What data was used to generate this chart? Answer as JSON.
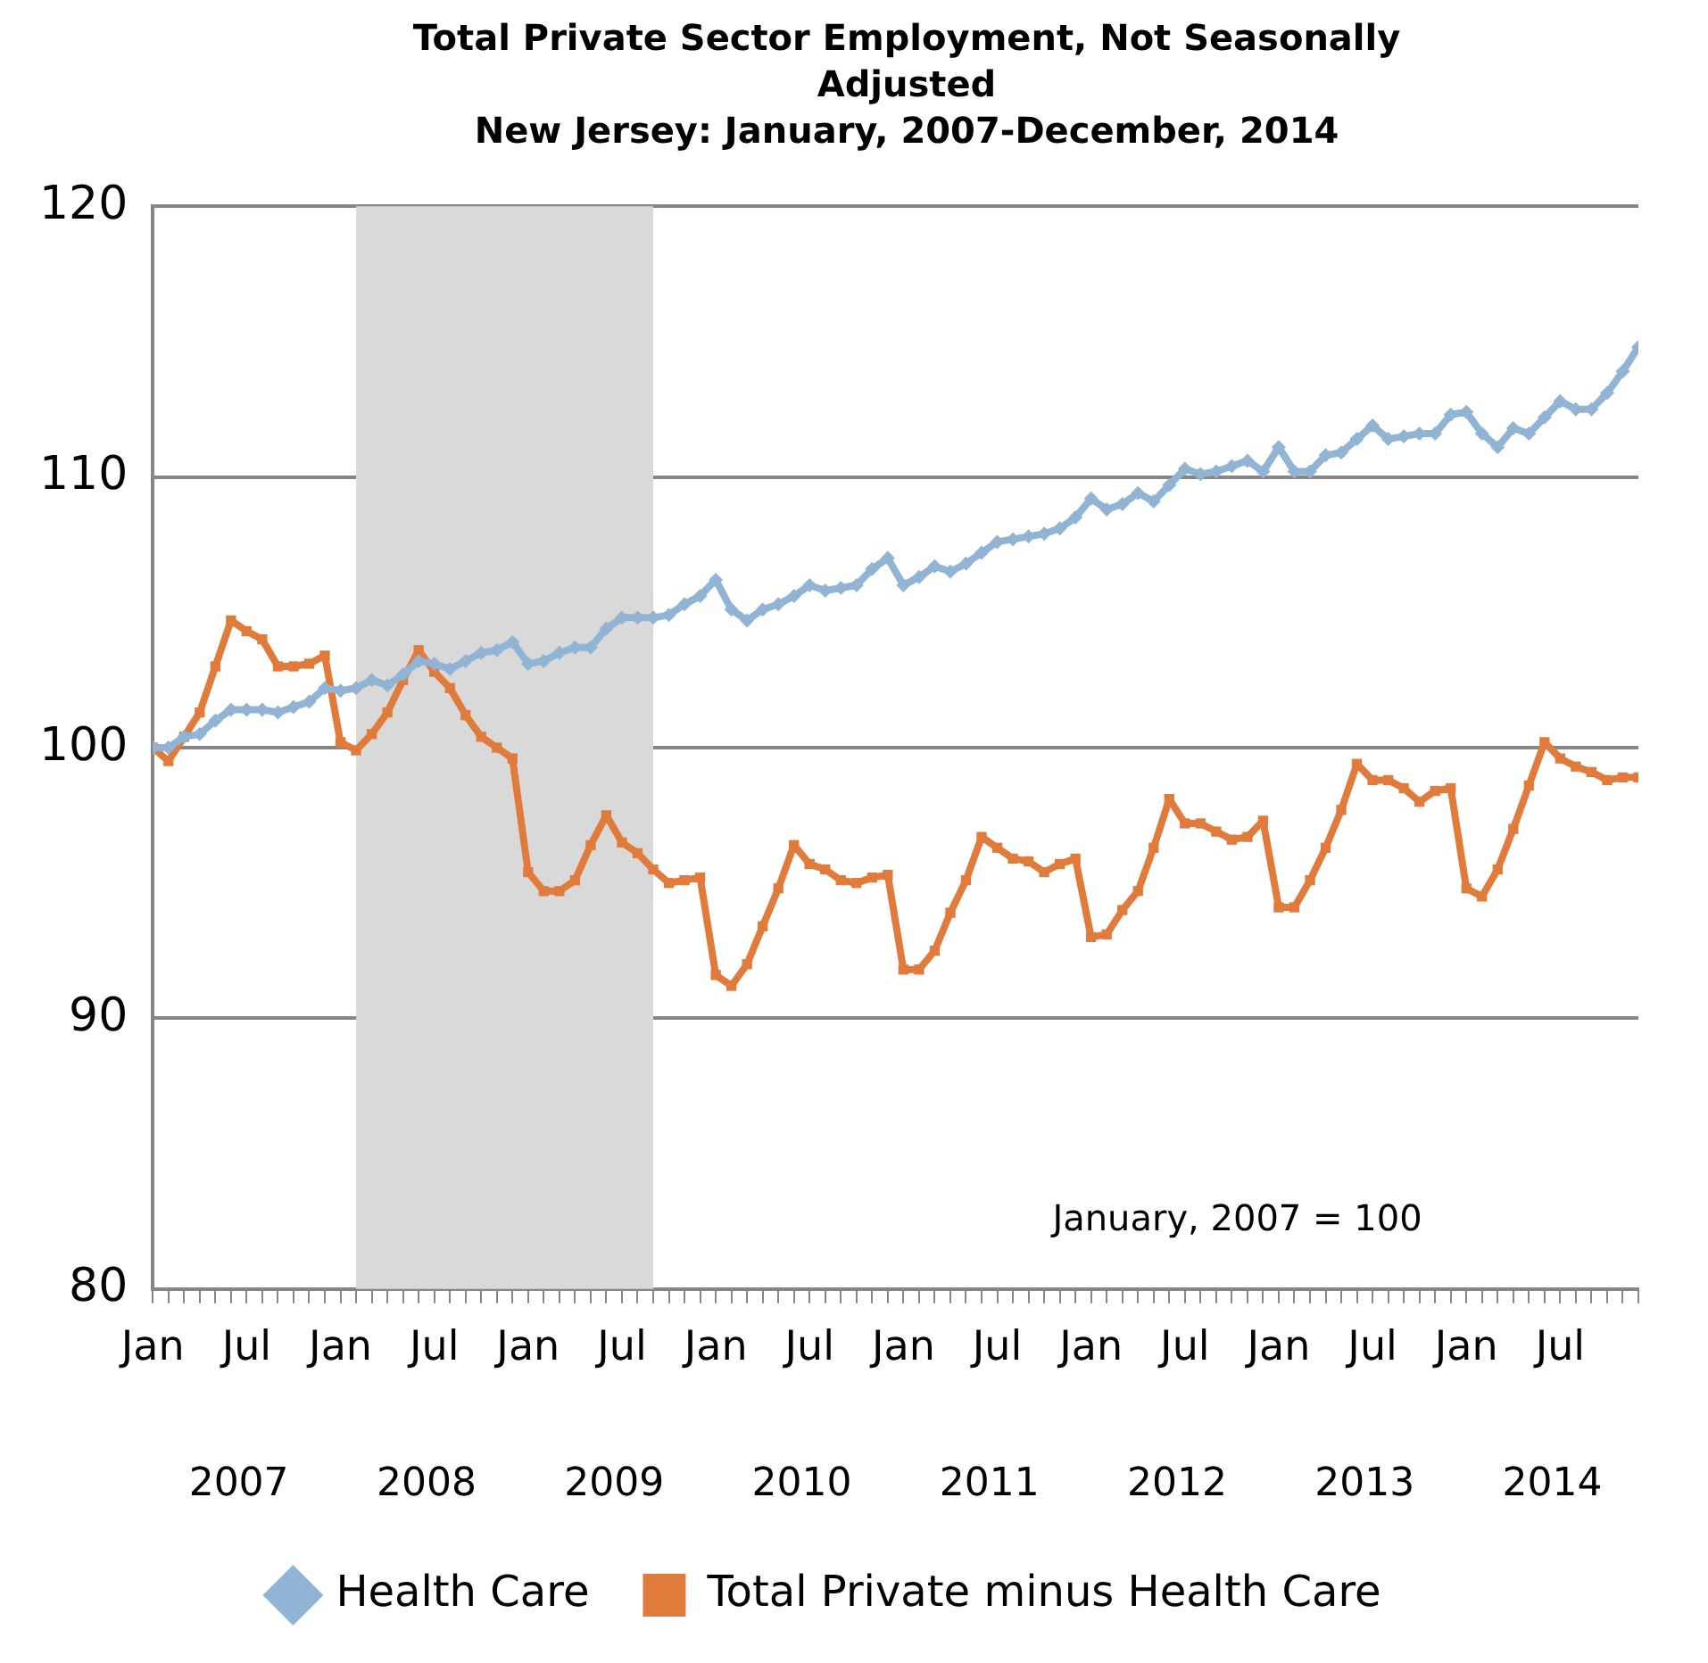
{
  "chart_data": {
    "type": "line",
    "title": "Total Private Sector Employment, Not Seasonally Adjusted",
    "subtitle": "New Jersey: January, 2007-December, 2014",
    "x": [
      "2007-01",
      "2007-02",
      "2007-03",
      "2007-04",
      "2007-05",
      "2007-06",
      "2007-07",
      "2007-08",
      "2007-09",
      "2007-10",
      "2007-11",
      "2007-12",
      "2008-01",
      "2008-02",
      "2008-03",
      "2008-04",
      "2008-05",
      "2008-06",
      "2008-07",
      "2008-08",
      "2008-09",
      "2008-10",
      "2008-11",
      "2008-12",
      "2009-01",
      "2009-02",
      "2009-03",
      "2009-04",
      "2009-05",
      "2009-06",
      "2009-07",
      "2009-08",
      "2009-09",
      "2009-10",
      "2009-11",
      "2009-12",
      "2010-01",
      "2010-02",
      "2010-03",
      "2010-04",
      "2010-05",
      "2010-06",
      "2010-07",
      "2010-08",
      "2010-09",
      "2010-10",
      "2010-11",
      "2010-12",
      "2011-01",
      "2011-02",
      "2011-03",
      "2011-04",
      "2011-05",
      "2011-06",
      "2011-07",
      "2011-08",
      "2011-09",
      "2011-10",
      "2011-11",
      "2011-12",
      "2012-01",
      "2012-02",
      "2012-03",
      "2012-04",
      "2012-05",
      "2012-06",
      "2012-07",
      "2012-08",
      "2012-09",
      "2012-10",
      "2012-11",
      "2012-12",
      "2013-01",
      "2013-02",
      "2013-03",
      "2013-04",
      "2013-05",
      "2013-06",
      "2013-07",
      "2013-08",
      "2013-09",
      "2013-10",
      "2013-11",
      "2013-12",
      "2014-01",
      "2014-02",
      "2014-03",
      "2014-04",
      "2014-05",
      "2014-06",
      "2014-07",
      "2014-08",
      "2014-09",
      "2014-10",
      "2014-11",
      "2014-12"
    ],
    "series": [
      {
        "name": "Health Care",
        "color": "#92b4d4",
        "marker": "diamond",
        "values": [
          100,
          100,
          100.4,
          100.5,
          101,
          101.4,
          101.4,
          101.4,
          101.3,
          101.5,
          101.7,
          102.2,
          102.1,
          102.2,
          102.5,
          102.3,
          102.7,
          103.2,
          103.1,
          102.9,
          103.2,
          103.5,
          103.6,
          103.9,
          103.1,
          103.2,
          103.5,
          103.7,
          103.7,
          104.4,
          104.8,
          104.8,
          104.8,
          104.9,
          105.3,
          105.6,
          106.2,
          105.1,
          104.7,
          105.1,
          105.3,
          105.6,
          106,
          105.8,
          105.9,
          106,
          106.6,
          107,
          106,
          106.3,
          106.7,
          106.5,
          106.8,
          107.2,
          107.6,
          107.7,
          107.8,
          107.9,
          108.1,
          108.5,
          109.2,
          108.8,
          109,
          109.4,
          109.1,
          109.7,
          110.3,
          110.1,
          110.2,
          110.4,
          110.6,
          110.2,
          111.1,
          110.2,
          110.2,
          110.8,
          110.9,
          111.4,
          111.9,
          111.4,
          111.5,
          111.6,
          111.6,
          112.3,
          112.4,
          111.6,
          111.1,
          111.8,
          111.6,
          112.2,
          112.8,
          112.5,
          112.5,
          113.1,
          113.9,
          114.8
        ]
      },
      {
        "name": "Total Private minus Health Care",
        "color": "#e07b3c",
        "marker": "square",
        "values": [
          100,
          99.5,
          100.4,
          101.3,
          103,
          104.7,
          104.3,
          104,
          103,
          103,
          103.1,
          103.4,
          100.2,
          99.9,
          100.5,
          101.3,
          102.5,
          103.6,
          102.8,
          102.2,
          101.2,
          100.4,
          100,
          99.6,
          95.4,
          94.7,
          94.7,
          95.1,
          96.4,
          97.5,
          96.5,
          96.1,
          95.5,
          95,
          95.1,
          95.2,
          91.6,
          91.2,
          92,
          93.4,
          94.8,
          96.4,
          95.7,
          95.5,
          95.1,
          95,
          95.2,
          95.3,
          91.8,
          91.8,
          92.5,
          93.9,
          95.1,
          96.7,
          96.3,
          95.9,
          95.8,
          95.4,
          95.7,
          95.9,
          93,
          93.1,
          94,
          94.7,
          96.3,
          98.1,
          97.2,
          97.2,
          96.9,
          96.6,
          96.7,
          97.3,
          94.1,
          94.1,
          95.1,
          96.3,
          97.7,
          99.4,
          98.8,
          98.8,
          98.5,
          98,
          98.4,
          98.5,
          94.8,
          94.5,
          95.5,
          97,
          98.6,
          100.2,
          99.6,
          99.3,
          99.1,
          98.8,
          98.9,
          98.9
        ]
      }
    ],
    "xlim": [
      "2007-01",
      "2014-12"
    ],
    "xticks": [
      {
        "value": "2007-01",
        "label": "Jan"
      },
      {
        "value": "2007-02",
        "label": null
      },
      {
        "value": "2007-03",
        "label": null
      },
      {
        "value": "2007-04",
        "label": null
      },
      {
        "value": "2007-05",
        "label": null
      },
      {
        "value": "2007-06",
        "label": null
      },
      {
        "value": "2007-07",
        "label": "Jul"
      },
      {
        "value": "2007-08",
        "label": null
      },
      {
        "value": "2007-09",
        "label": null
      },
      {
        "value": "2007-10",
        "label": null
      },
      {
        "value": "2007-11",
        "label": null
      },
      {
        "value": "2007-12",
        "label": null
      },
      {
        "value": "2008-01",
        "label": "Jan"
      },
      {
        "value": "2008-02",
        "label": null
      },
      {
        "value": "2008-03",
        "label": null
      },
      {
        "value": "2008-04",
        "label": null
      },
      {
        "value": "2008-05",
        "label": null
      },
      {
        "value": "2008-06",
        "label": null
      },
      {
        "value": "2008-07",
        "label": "Jul"
      },
      {
        "value": "2008-08",
        "label": null
      },
      {
        "value": "2008-09",
        "label": null
      },
      {
        "value": "2008-10",
        "label": null
      },
      {
        "value": "2008-11",
        "label": null
      },
      {
        "value": "2008-12",
        "label": null
      },
      {
        "value": "2009-01",
        "label": "Jan"
      },
      {
        "value": "2009-02",
        "label": null
      },
      {
        "value": "2009-03",
        "label": null
      },
      {
        "value": "2009-04",
        "label": null
      },
      {
        "value": "2009-05",
        "label": null
      },
      {
        "value": "2009-06",
        "label": null
      },
      {
        "value": "2009-07",
        "label": "Jul"
      },
      {
        "value": "2009-08",
        "label": null
      },
      {
        "value": "2009-09",
        "label": null
      },
      {
        "value": "2009-10",
        "label": null
      },
      {
        "value": "2009-11",
        "label": null
      },
      {
        "value": "2009-12",
        "label": null
      },
      {
        "value": "2010-01",
        "label": "Jan"
      },
      {
        "value": "2010-02",
        "label": null
      },
      {
        "value": "2010-03",
        "label": null
      },
      {
        "value": "2010-04",
        "label": null
      },
      {
        "value": "2010-05",
        "label": null
      },
      {
        "value": "2010-06",
        "label": null
      },
      {
        "value": "2010-07",
        "label": "Jul"
      },
      {
        "value": "2010-08",
        "label": null
      },
      {
        "value": "2010-09",
        "label": null
      },
      {
        "value": "2010-10",
        "label": null
      },
      {
        "value": "2010-11",
        "label": null
      },
      {
        "value": "2010-12",
        "label": null
      },
      {
        "value": "2011-01",
        "label": "Jan"
      },
      {
        "value": "2011-02",
        "label": null
      },
      {
        "value": "2011-03",
        "label": null
      },
      {
        "value": "2011-04",
        "label": null
      },
      {
        "value": "2011-05",
        "label": null
      },
      {
        "value": "2011-06",
        "label": null
      },
      {
        "value": "2011-07",
        "label": "Jul"
      },
      {
        "value": "2011-08",
        "label": null
      },
      {
        "value": "2011-09",
        "label": null
      },
      {
        "value": "2011-10",
        "label": null
      },
      {
        "value": "2011-11",
        "label": null
      },
      {
        "value": "2011-12",
        "label": null
      },
      {
        "value": "2012-01",
        "label": "Jan"
      },
      {
        "value": "2012-02",
        "label": null
      },
      {
        "value": "2012-03",
        "label": null
      },
      {
        "value": "2012-04",
        "label": null
      },
      {
        "value": "2012-05",
        "label": null
      },
      {
        "value": "2012-06",
        "label": null
      },
      {
        "value": "2012-07",
        "label": "Jul"
      },
      {
        "value": "2012-08",
        "label": null
      },
      {
        "value": "2012-09",
        "label": null
      },
      {
        "value": "2012-10",
        "label": null
      },
      {
        "value": "2012-11",
        "label": null
      },
      {
        "value": "2012-12",
        "label": null
      },
      {
        "value": "2013-01",
        "label": "Jan"
      },
      {
        "value": "2013-02",
        "label": null
      },
      {
        "value": "2013-03",
        "label": null
      },
      {
        "value": "2013-04",
        "label": null
      },
      {
        "value": "2013-05",
        "label": null
      },
      {
        "value": "2013-06",
        "label": null
      },
      {
        "value": "2013-07",
        "label": "Jul"
      },
      {
        "value": "2013-08",
        "label": null
      },
      {
        "value": "2013-09",
        "label": null
      },
      {
        "value": "2013-10",
        "label": null
      },
      {
        "value": "2013-11",
        "label": null
      },
      {
        "value": "2013-12",
        "label": null
      },
      {
        "value": "2014-01",
        "label": "Jan"
      },
      {
        "value": "2014-02",
        "label": null
      },
      {
        "value": "2014-03",
        "label": null
      },
      {
        "value": "2014-04",
        "label": null
      },
      {
        "value": "2014-05",
        "label": null
      },
      {
        "value": "2014-06",
        "label": null
      },
      {
        "value": "2014-07",
        "label": "Jul"
      },
      {
        "value": "2014-08",
        "label": null
      },
      {
        "value": "2014-09",
        "label": null
      },
      {
        "value": "2014-10",
        "label": null
      },
      {
        "value": "2014-11",
        "label": null
      },
      {
        "value": "2014-12",
        "label": null
      }
    ],
    "ylim": [
      80,
      120
    ],
    "yticks": [
      80,
      90,
      100,
      110,
      120
    ],
    "bands": [
      {
        "axis": "x",
        "from": "2008-02",
        "to": "2009-09",
        "color": "#d9d9d9"
      }
    ],
    "annotations": [
      "2007",
      "2008",
      "2009",
      "2010",
      "2011",
      "2012",
      "2013",
      "2014",
      "January, 2007 = 100"
    ],
    "grid": "y",
    "legend": "bottom",
    "line_style": "solid"
  }
}
